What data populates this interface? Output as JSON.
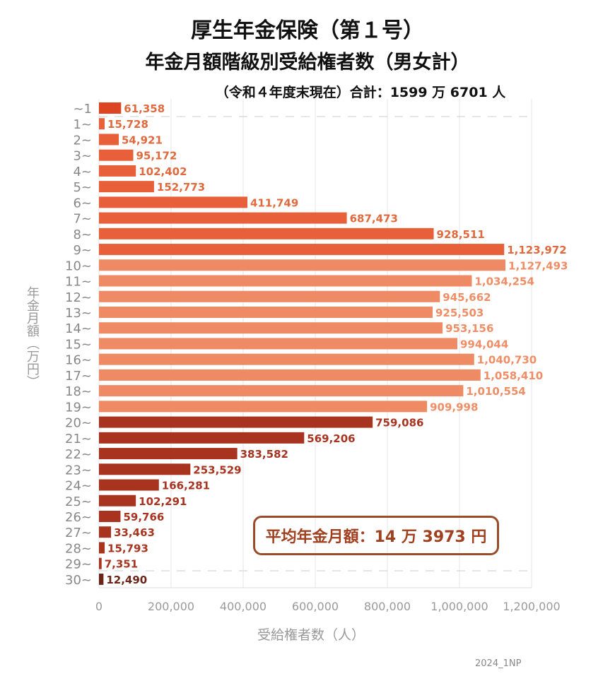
{
  "chart_data": {
    "type": "bar",
    "orientation": "horizontal",
    "title": "厚生年金保険（第１号）",
    "subtitle": "年金月額階級別受給権者数（男女計）",
    "note": "（令和４年度末現在）合計：1599 万 6701 人",
    "xlabel": "受給権者数（人）",
    "ylabel": "年金月額（万円）",
    "xlim": [
      0,
      1200000
    ],
    "xticks": [
      0,
      200000,
      400000,
      600000,
      800000,
      1000000,
      1200000
    ],
    "xtick_labels": [
      "0",
      "200,000",
      "400,000",
      "600,000",
      "800,000",
      "1,000,000",
      "1,200,000"
    ],
    "grid": "vertical",
    "categories": [
      "~1",
      "1~",
      "2~",
      "3~",
      "4~",
      "5~",
      "6~",
      "7~",
      "8~",
      "9~",
      "10~",
      "11~",
      "12~",
      "13~",
      "14~",
      "15~",
      "16~",
      "17~",
      "18~",
      "19~",
      "20~",
      "21~",
      "22~",
      "23~",
      "24~",
      "25~",
      "26~",
      "27~",
      "28~",
      "29~",
      "30~"
    ],
    "values": [
      61358,
      15728,
      54921,
      95172,
      102402,
      152773,
      411749,
      687473,
      928511,
      1123972,
      1127493,
      1034254,
      945662,
      925503,
      953156,
      994044,
      1040730,
      1058410,
      1010554,
      909998,
      759086,
      569206,
      383582,
      253529,
      166281,
      102291,
      59766,
      33463,
      15793,
      7351,
      12490
    ],
    "value_labels": [
      "61,358",
      "15,728",
      "54,921",
      "95,172",
      "102,402",
      "152,773",
      "411,749",
      "687,473",
      "928,511",
      "1,123,972",
      "1,127,493",
      "1,034,254",
      "945,662",
      "925,503",
      "953,156",
      "994,044",
      "1,040,730",
      "1,058,410",
      "1,010,554",
      "909,998",
      "759,086",
      "569,206",
      "383,582",
      "253,529",
      "166,281",
      "102,291",
      "59,766",
      "33,463",
      "15,793",
      "7,351",
      "12,490"
    ],
    "colors": {
      "under1": "#dd4522",
      "1to9": "#e8603a",
      "10to19": "#ee8a64",
      "20to29": "#a83420",
      "30plus": "#6a2418"
    },
    "annotation": "平均年金月額：14 万 3973 円"
  },
  "credit": "2024_1NP"
}
